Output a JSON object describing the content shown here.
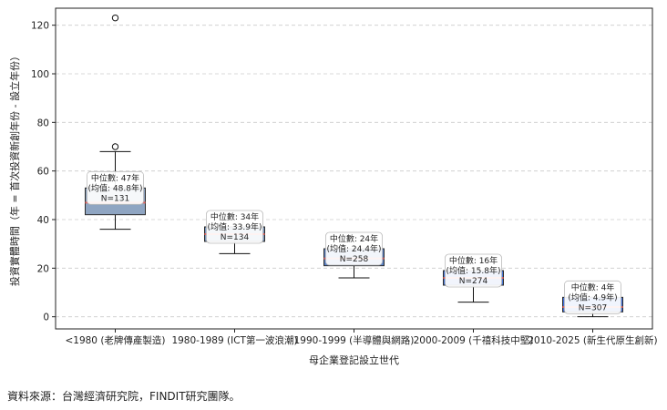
{
  "chart_data": {
    "type": "box",
    "xlabel": "母企業登記設立世代",
    "ylabel": "投資實體時間（年 = 首次投資新創年份 - 設立年份）",
    "ylim": [
      -5,
      127
    ],
    "yticks": [
      0,
      20,
      40,
      60,
      80,
      100,
      120
    ],
    "grid": "horizontal dashed",
    "categories": [
      "<1980 (老牌傳產製造)",
      "1980-1989 (ICT第一波浪潮)",
      "1990-1999 (半導體與網路)",
      "2000-2009 (千禧科技中堅)",
      "2010-2025 (新生代原生創新)"
    ],
    "boxes": [
      {
        "whisker_low": 36,
        "q1": 42,
        "median": 47,
        "mean": 48.8,
        "q3": 53,
        "whisker_high": 68,
        "outliers": [
          70,
          123
        ],
        "n": 131,
        "color": "#8fa5c2"
      },
      {
        "whisker_low": 26,
        "q1": 31,
        "median": 34,
        "mean": 33.9,
        "q3": 37,
        "whisker_high": 37,
        "outliers": [],
        "n": 134,
        "color": "#7995bd"
      },
      {
        "whisker_low": 16,
        "q1": 21,
        "median": 24,
        "mean": 24.4,
        "q3": 28,
        "whisker_high": 28,
        "outliers": [],
        "n": 258,
        "color": "#5a82c9"
      },
      {
        "whisker_low": 6,
        "q1": 13,
        "median": 16,
        "mean": 15.8,
        "q3": 19,
        "whisker_high": 19,
        "outliers": [],
        "n": 274,
        "color": "#4a78d6"
      },
      {
        "whisker_low": 0,
        "q1": 2,
        "median": 4,
        "mean": 4.9,
        "q3": 8,
        "whisker_high": 8,
        "outliers": [],
        "n": 307,
        "color": "#3f6fe0"
      }
    ],
    "annotations": [
      {
        "line1": "中位數: 47年",
        "line2": "(均值: 48.8年)",
        "line3": "N=131"
      },
      {
        "line1": "中位數: 34年",
        "line2": "(均值: 33.9年)",
        "line3": "N=134"
      },
      {
        "line1": "中位數: 24年",
        "line2": "(均值: 24.4年)",
        "line3": "N=258"
      },
      {
        "line1": "中位數: 16年",
        "line2": "(均值: 15.8年)",
        "line3": "N=274"
      },
      {
        "line1": "中位數: 4年",
        "line2": "(均值: 4.9年)",
        "line3": "N=307"
      }
    ],
    "colors": {
      "median_line": "#e8655f",
      "box_edge": "#2b2b2b",
      "whisker": "#111111",
      "grid": "#cccccc"
    }
  },
  "source_note": "資料來源：台灣經濟研究院，FINDIT研究團隊。"
}
